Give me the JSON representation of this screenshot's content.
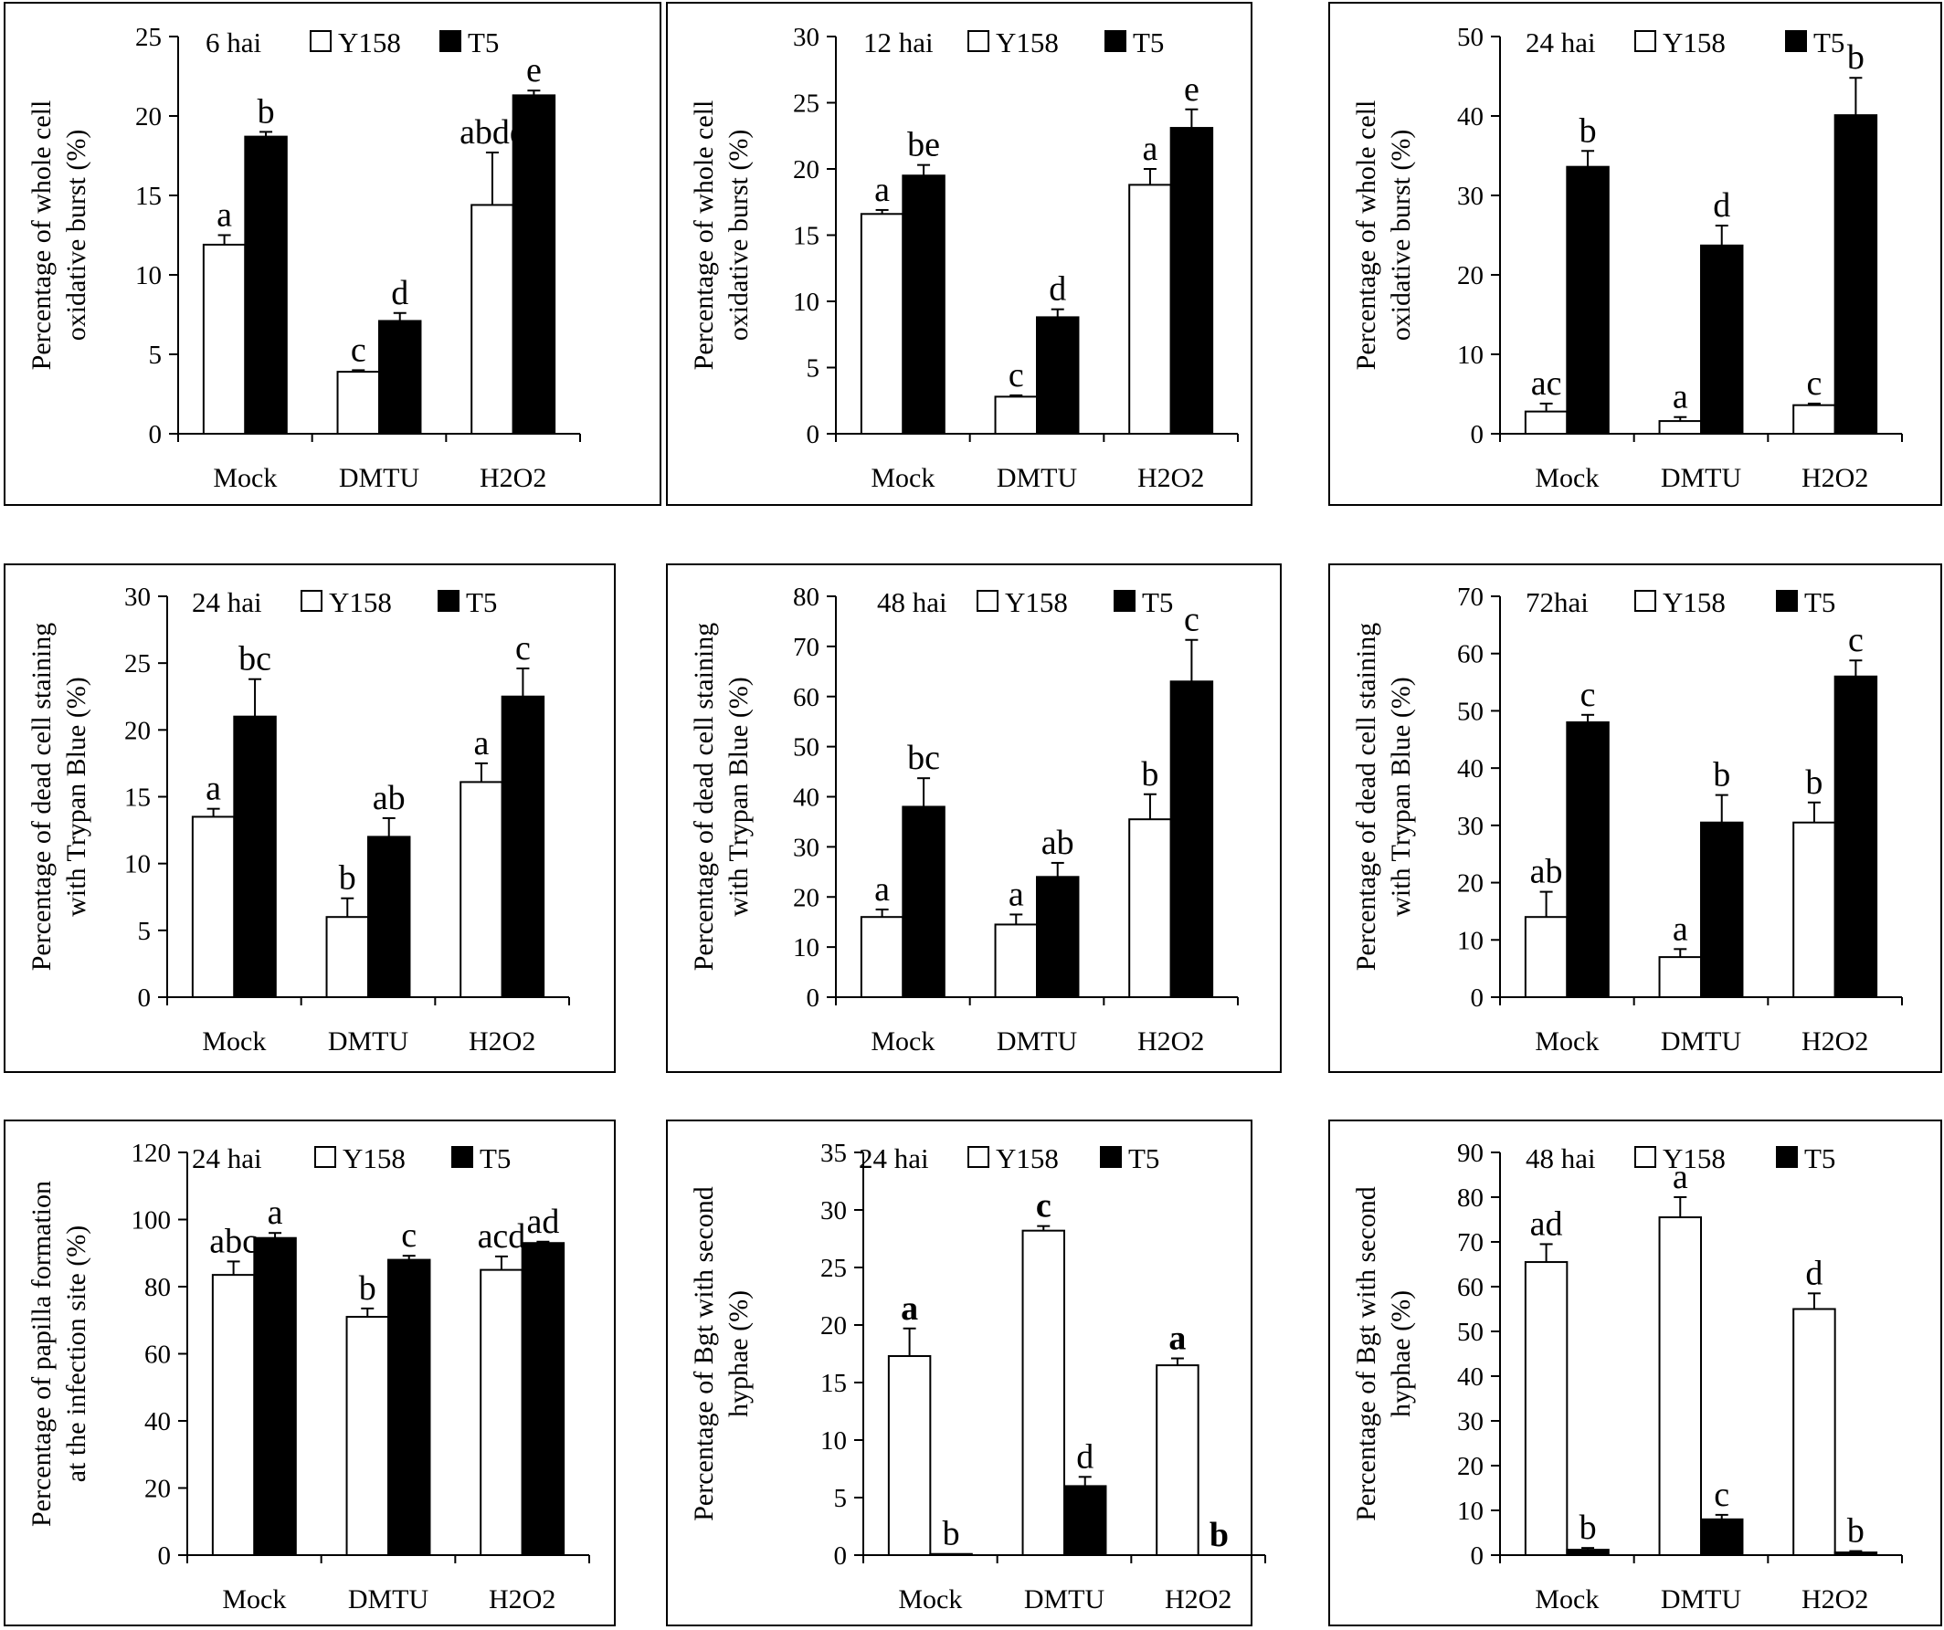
{
  "figure_label": "Bar chart panels: Y158 vs T5 under Mock, DMTU and H2O2 treatments",
  "legend_labels": [
    "Y158",
    "T5"
  ],
  "colors": {
    "Y158": "#ffffff",
    "T5": "#000000",
    "outline": "#000000"
  },
  "chart_data": [
    {
      "type": "bar",
      "time_label": "6 hai",
      "ylabel_lines": [
        "Percentage of whole cell",
        "oxidative burst (%)"
      ],
      "ylim": [
        0,
        25
      ],
      "ystep": 5,
      "categories": [
        "Mock",
        "DMTU",
        "H2O2"
      ],
      "series": [
        {
          "name": "Y158",
          "values": [
            11.9,
            3.9,
            14.4
          ],
          "errors": [
            0.6,
            0.1,
            3.3
          ],
          "letters": [
            "a",
            "c",
            "abde"
          ]
        },
        {
          "name": "T5",
          "values": [
            18.7,
            7.1,
            21.3
          ],
          "errors": [
            0.3,
            0.5,
            0.3
          ],
          "letters": [
            "b",
            "d",
            "e"
          ]
        }
      ]
    },
    {
      "type": "bar",
      "time_label": "12 hai",
      "ylabel_lines": [
        "Percentage of whole cell",
        "oxidative burst (%)"
      ],
      "ylim": [
        0,
        30
      ],
      "ystep": 5,
      "categories": [
        "Mock",
        "DMTU",
        "H2O2"
      ],
      "series": [
        {
          "name": "Y158",
          "values": [
            16.6,
            2.8,
            18.8
          ],
          "errors": [
            0.3,
            0.1,
            1.2
          ],
          "letters": [
            "a",
            "c",
            "a"
          ]
        },
        {
          "name": "T5",
          "values": [
            19.5,
            8.8,
            23.1
          ],
          "errors": [
            0.8,
            0.6,
            1.4
          ],
          "letters": [
            "be",
            "d",
            "e"
          ]
        }
      ]
    },
    {
      "type": "bar",
      "time_label": "24 hai",
      "ylabel_lines": [
        "Percentage of whole cell",
        "oxidative burst (%)"
      ],
      "ylim": [
        0,
        50
      ],
      "ystep": 10,
      "categories": [
        "Mock",
        "DMTU",
        "H2O2"
      ],
      "series": [
        {
          "name": "Y158",
          "values": [
            2.8,
            1.6,
            3.6
          ],
          "errors": [
            1.0,
            0.5,
            0.2
          ],
          "letters": [
            "ac",
            "a",
            "c"
          ]
        },
        {
          "name": "T5",
          "values": [
            33.6,
            23.7,
            40.1
          ],
          "errors": [
            2.0,
            2.5,
            4.7
          ],
          "letters": [
            "b",
            "d",
            "b"
          ]
        }
      ]
    },
    {
      "type": "bar",
      "time_label": "24 hai",
      "ylabel_lines": [
        "Percentage of dead cell staining",
        "with Trypan Blue (%)"
      ],
      "ylim": [
        0,
        30
      ],
      "ystep": 5,
      "categories": [
        "Mock",
        "DMTU",
        "H2O2"
      ],
      "series": [
        {
          "name": "Y158",
          "values": [
            13.5,
            6.0,
            16.1
          ],
          "errors": [
            0.6,
            1.4,
            1.4
          ],
          "letters": [
            "a",
            "b",
            "a"
          ]
        },
        {
          "name": "T5",
          "values": [
            21.0,
            12.0,
            22.5
          ],
          "errors": [
            2.8,
            1.4,
            2.1
          ],
          "letters": [
            "bc",
            "ab",
            "c"
          ]
        }
      ]
    },
    {
      "type": "bar",
      "time_label": "48 hai",
      "ylabel_lines": [
        "Percentage of dead cell staining",
        "with Trypan Blue (%)"
      ],
      "ylim": [
        0,
        80
      ],
      "ystep": 10,
      "categories": [
        "Mock",
        "DMTU",
        "H2O2"
      ],
      "series": [
        {
          "name": "Y158",
          "values": [
            16.0,
            14.5,
            35.5
          ],
          "errors": [
            1.5,
            2.0,
            5.0
          ],
          "letters": [
            "a",
            "a",
            "b"
          ]
        },
        {
          "name": "T5",
          "values": [
            38.0,
            24.0,
            63.0
          ],
          "errors": [
            5.7,
            2.8,
            8.3
          ],
          "letters": [
            "bc",
            "ab",
            "c"
          ]
        }
      ]
    },
    {
      "type": "bar",
      "time_label": "72hai",
      "ylabel_lines": [
        "Percentage of dead cell staining",
        "with Trypan Blue (%)"
      ],
      "ylim": [
        0,
        70
      ],
      "ystep": 10,
      "categories": [
        "Mock",
        "DMTU",
        "H2O2"
      ],
      "series": [
        {
          "name": "Y158",
          "values": [
            14.0,
            7.0,
            30.5
          ],
          "errors": [
            4.4,
            1.4,
            3.5
          ],
          "letters": [
            "ab",
            "a",
            "b"
          ]
        },
        {
          "name": "T5",
          "values": [
            48.0,
            30.5,
            56.0
          ],
          "errors": [
            1.3,
            4.8,
            2.8
          ],
          "letters": [
            "c",
            "b",
            "c"
          ]
        }
      ]
    },
    {
      "type": "bar",
      "time_label": "24 hai",
      "ylabel_lines": [
        "Percentage of  papilla formation",
        "at the infection site (%)"
      ],
      "ylim": [
        0,
        120
      ],
      "ystep": 20,
      "categories": [
        "Mock",
        "DMTU",
        "H2O2"
      ],
      "series": [
        {
          "name": "Y158",
          "values": [
            83.5,
            71.0,
            85.0
          ],
          "errors": [
            4.0,
            2.5,
            4.0
          ],
          "letters": [
            "abc",
            "b",
            "acd"
          ]
        },
        {
          "name": "T5",
          "values": [
            94.5,
            88.0,
            93.0
          ],
          "errors": [
            1.5,
            1.2,
            0.4
          ],
          "letters": [
            "a",
            "c",
            "ad"
          ]
        }
      ]
    },
    {
      "type": "bar",
      "time_label": "24 hai",
      "ylabel_lines": [
        "Percentage of Bgt with second",
        "hyphae  (%)"
      ],
      "ylim": [
        0,
        35
      ],
      "ystep": 5,
      "categories": [
        "Mock",
        "DMTU",
        "H2O2"
      ],
      "series": [
        {
          "name": "Y158",
          "values": [
            17.3,
            28.2,
            16.5
          ],
          "errors": [
            2.4,
            0.4,
            0.6
          ],
          "letters": [
            "a",
            "c",
            "a"
          ],
          "bold_letters": true
        },
        {
          "name": "T5",
          "values": [
            0.1,
            6.0,
            0.0
          ],
          "errors": [
            0.0,
            0.8,
            0.0
          ],
          "letters": [
            "b",
            "d",
            "b"
          ],
          "bold_index": [
            2
          ]
        }
      ]
    },
    {
      "type": "bar",
      "time_label": "48 hai",
      "ylabel_lines": [
        "Percentage of Bgt with second",
        "hyphae  (%)"
      ],
      "ylim": [
        0,
        90
      ],
      "ystep": 10,
      "categories": [
        "Mock",
        "DMTU",
        "H2O2"
      ],
      "series": [
        {
          "name": "Y158",
          "values": [
            65.5,
            75.5,
            55.0
          ],
          "errors": [
            4.0,
            4.5,
            3.5
          ],
          "letters": [
            "ad",
            "a",
            "d"
          ]
        },
        {
          "name": "T5",
          "values": [
            1.2,
            8.0,
            0.6
          ],
          "errors": [
            0.4,
            1.0,
            0.3
          ],
          "letters": [
            "b",
            "c",
            "b"
          ]
        }
      ]
    }
  ]
}
